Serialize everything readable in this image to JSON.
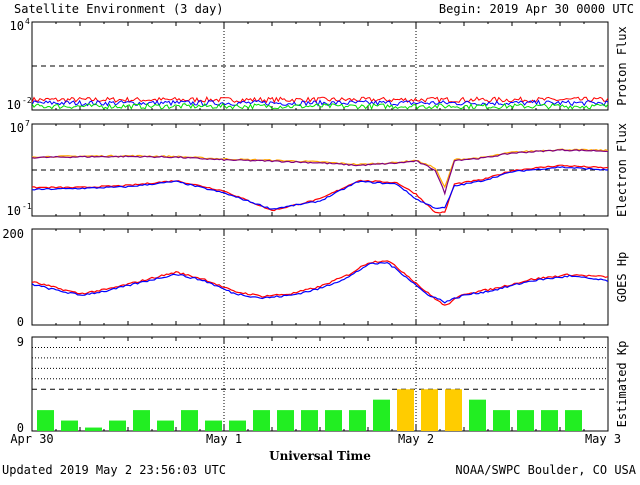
{
  "header": {
    "title": "Satellite Environment (3 day)",
    "begin": "Begin:  2019 Apr 30 0000 UTC"
  },
  "footer": {
    "updated": "Updated 2019 May  2 23:56:03 UTC",
    "source": "NOAA/SWPC Boulder, CO USA"
  },
  "colors": {
    "red": "#ff0000",
    "blue": "#0000ff",
    "green": "#00e000",
    "orange": "#ffa500",
    "purple": "#800080",
    "kp_green": "#22ee22",
    "kp_yellow": "#ffcc00",
    "frame": "#000000"
  },
  "chart_data": [
    {
      "type": "line",
      "ylabel": "Proton Flux",
      "scale": "log",
      "ylim": [
        0.01,
        10000
      ],
      "y_ticks": [
        {
          "base": "10",
          "exp": "4"
        },
        {
          "base": "10",
          "exp": "-2"
        }
      ],
      "threshold": 10,
      "x": [
        0,
        3
      ],
      "series": [
        {
          "color": "red",
          "level": 0.05,
          "jitter": 0.35
        },
        {
          "color": "blue",
          "level": 0.03,
          "jitter": 0.35
        },
        {
          "color": "green",
          "level": 0.018,
          "jitter": 0.35
        }
      ]
    },
    {
      "type": "line",
      "ylabel": "Electron Flux",
      "scale": "log",
      "ylim": [
        0.1,
        10000000
      ],
      "y_ticks": [
        {
          "base": "10",
          "exp": "7"
        },
        {
          "base": "10",
          "exp": "-1"
        }
      ],
      "threshold": 1000,
      "x": [
        0,
        0.25,
        0.5,
        0.75,
        1.0,
        1.25,
        1.5,
        1.7,
        1.9,
        2.0,
        2.1,
        2.15,
        2.2,
        2.35,
        2.5,
        2.75,
        3.0
      ],
      "series": [
        {
          "color": "orange",
          "values": [
            14000,
            16000,
            17000,
            15000,
            9000,
            7000,
            5000,
            3000,
            4500,
            7000,
            1500,
            30,
            8000,
            12000,
            35000,
            60000,
            50000
          ]
        },
        {
          "color": "purple",
          "values": [
            12000,
            14000,
            15000,
            13000,
            7500,
            6000,
            4200,
            2500,
            4000,
            6000,
            1000,
            10,
            7000,
            11000,
            30000,
            55000,
            45000
          ]
        },
        {
          "color": "red",
          "values": [
            30,
            30,
            45,
            120,
            15,
            0.3,
            3,
            120,
            80,
            8,
            0.2,
            0.2,
            60,
            150,
            900,
            2500,
            1500
          ]
        },
        {
          "color": "blue",
          "values": [
            20,
            25,
            35,
            100,
            10,
            0.4,
            2,
            100,
            60,
            3,
            0.5,
            0.5,
            40,
            120,
            700,
            1800,
            1000
          ]
        }
      ]
    },
    {
      "type": "line",
      "ylabel": "GOES Hp",
      "scale": "linear",
      "ylim": [
        0,
        200
      ],
      "y_ticks": [
        "200",
        "0"
      ],
      "x": [
        0,
        0.1,
        0.25,
        0.4,
        0.6,
        0.75,
        0.9,
        1.05,
        1.2,
        1.35,
        1.5,
        1.65,
        1.75,
        1.85,
        1.95,
        2.05,
        2.15,
        2.25,
        2.4,
        2.6,
        2.8,
        3.0
      ],
      "series": [
        {
          "color": "red",
          "values": [
            90,
            80,
            65,
            75,
            95,
            110,
            95,
            70,
            60,
            65,
            80,
            105,
            130,
            135,
            105,
            70,
            40,
            65,
            75,
            95,
            105,
            100
          ]
        },
        {
          "color": "blue",
          "values": [
            85,
            75,
            62,
            72,
            92,
            106,
            92,
            66,
            56,
            62,
            76,
            100,
            126,
            130,
            100,
            66,
            48,
            62,
            72,
            92,
            102,
            92
          ]
        }
      ]
    },
    {
      "type": "bar",
      "ylabel": "Estimated Kp",
      "ylim": [
        0,
        9
      ],
      "y_ticks": [
        "9",
        "0"
      ],
      "gridlines": [
        5,
        6,
        7,
        8
      ],
      "threshold": 4,
      "values": [
        2,
        1,
        0.33,
        1,
        2,
        1,
        2,
        1,
        1,
        2,
        2,
        2,
        2,
        2,
        3,
        4,
        4,
        4,
        3,
        2,
        2,
        2,
        2
      ],
      "colors": [
        "kp_green",
        "kp_green",
        "kp_green",
        "kp_green",
        "kp_green",
        "kp_green",
        "kp_green",
        "kp_green",
        "kp_green",
        "kp_green",
        "kp_green",
        "kp_green",
        "kp_green",
        "kp_green",
        "kp_green",
        "kp_yellow",
        "kp_yellow",
        "kp_yellow",
        "kp_green",
        "kp_green",
        "kp_green",
        "kp_green",
        "kp_green"
      ]
    }
  ],
  "x_axis": {
    "ticks": [
      "Apr 30",
      "May 1",
      "May 2",
      "May 3"
    ],
    "label": "Universal Time",
    "day_markers": [
      1,
      2
    ]
  }
}
